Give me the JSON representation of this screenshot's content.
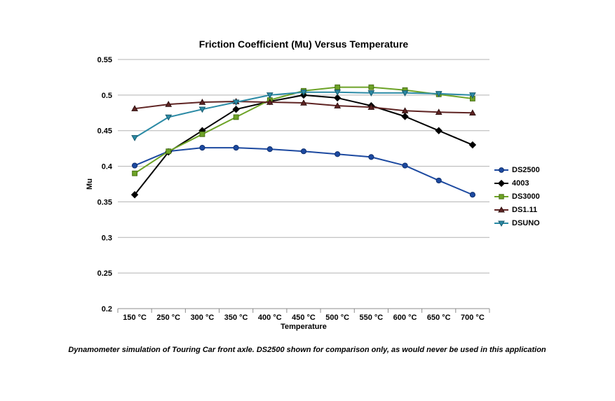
{
  "chart_data": {
    "type": "line",
    "title": "Friction Coefficient (Mu) Versus Temperature",
    "xlabel": "Temperature",
    "ylabel": "Mu",
    "caption": "Dynamometer simulation of Touring Car front axle. DS2500 shown for comparison only, as would never be used in this application",
    "categories": [
      "150 °C",
      "250 °C",
      "300 °C",
      "350 °C",
      "400 °C",
      "450 °C",
      "500 °C",
      "550 °C",
      "600 °C",
      "650 °C",
      "700 °C"
    ],
    "ylim": [
      0.2,
      0.55
    ],
    "ytick_labels": [
      "0.2",
      "0.25",
      "0.3",
      "0.35",
      "0.4",
      "0.45",
      "0.5",
      "0.55"
    ],
    "grid": true,
    "legend_position": "right",
    "colors": {
      "grid": "#b3b3b3",
      "axis": "#8c8c8c",
      "text": "#000000"
    },
    "series": [
      {
        "name": "DS2500",
        "color": "#1c49a0",
        "edge": "#10306e",
        "marker": "circle",
        "values": [
          0.401,
          0.421,
          0.426,
          0.426,
          0.424,
          0.421,
          0.417,
          0.413,
          0.401,
          0.38,
          0.36
        ]
      },
      {
        "name": "4003",
        "color": "#000000",
        "edge": "#000000",
        "marker": "diamond",
        "values": [
          0.36,
          0.42,
          0.45,
          0.48,
          0.491,
          0.5,
          0.496,
          0.485,
          0.47,
          0.45,
          0.43
        ]
      },
      {
        "name": "DS3000",
        "color": "#6da327",
        "edge": "#497015",
        "marker": "square",
        "values": [
          0.39,
          0.421,
          0.445,
          0.469,
          0.493,
          0.506,
          0.511,
          0.511,
          0.507,
          0.501,
          0.495
        ]
      },
      {
        "name": "DS1.11",
        "color": "#5f2423",
        "edge": "#2e0f0f",
        "marker": "triangle-up",
        "values": [
          0.481,
          0.487,
          0.49,
          0.491,
          0.49,
          0.489,
          0.485,
          0.483,
          0.478,
          0.476,
          0.475
        ]
      },
      {
        "name": "DSUNO",
        "color": "#2b8aa5",
        "edge": "#175a6e",
        "marker": "triangle-down",
        "values": [
          0.44,
          0.469,
          0.48,
          0.49,
          0.5,
          0.504,
          0.504,
          0.503,
          0.503,
          0.502,
          0.5
        ]
      }
    ]
  }
}
